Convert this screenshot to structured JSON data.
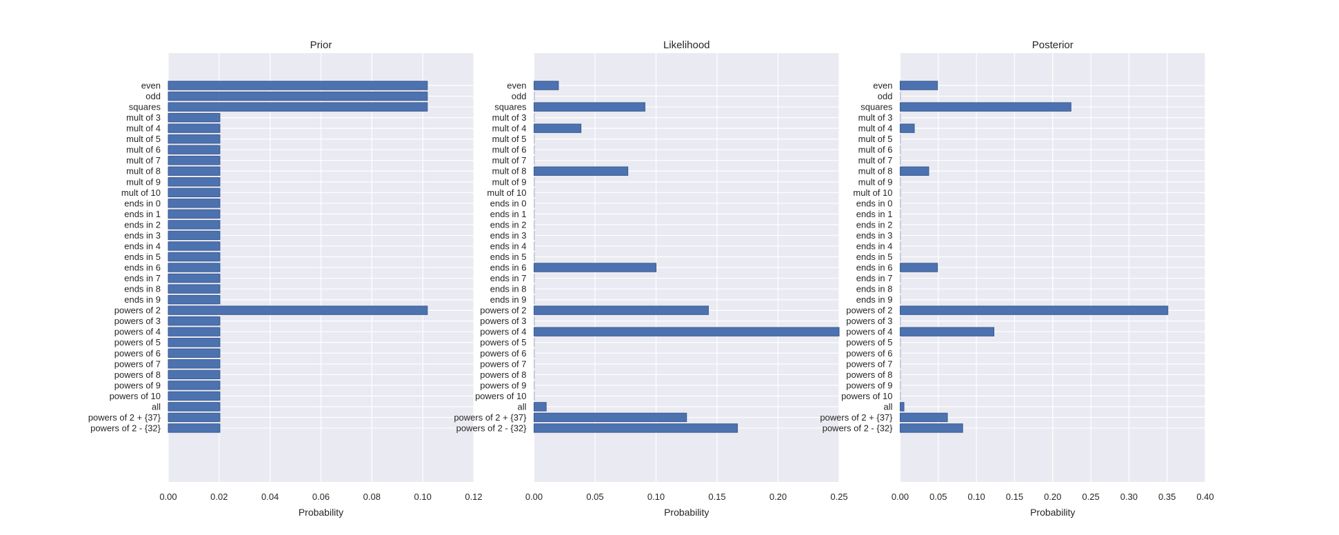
{
  "colors": {
    "bar": "#4C72B0",
    "bar_edge": "#3b5a8f",
    "plot_bg": "#EAEAF2",
    "grid": "#ffffff",
    "text": "#262626"
  },
  "chart_data": [
    {
      "type": "bar",
      "orientation": "horizontal",
      "title": "Prior",
      "xlabel": "Probability",
      "ylabel": "",
      "xlim": [
        0,
        0.12
      ],
      "xticks": [
        "0.00",
        "0.02",
        "0.04",
        "0.06",
        "0.08",
        "0.10",
        "0.12"
      ],
      "grid": true,
      "categories": [
        "even",
        "odd",
        "squares",
        "mult of 3",
        "mult of 4",
        "mult of 5",
        "mult of 6",
        "mult of 7",
        "mult of 8",
        "mult of 9",
        "mult of 10",
        "ends in 0",
        "ends in 1",
        "ends in 2",
        "ends in 3",
        "ends in 4",
        "ends in 5",
        "ends in 6",
        "ends in 7",
        "ends in 8",
        "ends in 9",
        "powers of 2",
        "powers of 3",
        "powers of 4",
        "powers of 5",
        "powers of 6",
        "powers of 7",
        "powers of 8",
        "powers of 9",
        "powers of 10",
        "all",
        "powers of 2 + {37}",
        "powers of 2 - {32}"
      ],
      "values": [
        0.1018,
        0.1018,
        0.1018,
        0.0203,
        0.0203,
        0.0203,
        0.0203,
        0.0203,
        0.0203,
        0.0203,
        0.0203,
        0.0203,
        0.0203,
        0.0203,
        0.0203,
        0.0203,
        0.0203,
        0.0203,
        0.0203,
        0.0203,
        0.0203,
        0.1018,
        0.0203,
        0.0203,
        0.0203,
        0.0203,
        0.0203,
        0.0203,
        0.0203,
        0.0203,
        0.0203,
        0.0203,
        0.0203
      ]
    },
    {
      "type": "bar",
      "orientation": "horizontal",
      "title": "Likelihood",
      "xlabel": "Probability",
      "ylabel": "",
      "xlim": [
        0,
        0.25
      ],
      "xticks": [
        "0.00",
        "0.05",
        "0.10",
        "0.15",
        "0.20",
        "0.25"
      ],
      "grid": true,
      "categories": [
        "even",
        "odd",
        "squares",
        "mult of 3",
        "mult of 4",
        "mult of 5",
        "mult of 6",
        "mult of 7",
        "mult of 8",
        "mult of 9",
        "mult of 10",
        "ends in 0",
        "ends in 1",
        "ends in 2",
        "ends in 3",
        "ends in 4",
        "ends in 5",
        "ends in 6",
        "ends in 7",
        "ends in 8",
        "ends in 9",
        "powers of 2",
        "powers of 3",
        "powers of 4",
        "powers of 5",
        "powers of 6",
        "powers of 7",
        "powers of 8",
        "powers of 9",
        "powers of 10",
        "all",
        "powers of 2 + {37}",
        "powers of 2 - {32}"
      ],
      "values": [
        0.02,
        0,
        0.0909,
        0,
        0.0385,
        0,
        0,
        0,
        0.0769,
        0,
        0,
        0,
        0,
        0,
        0,
        0,
        0,
        0.1,
        0,
        0,
        0,
        0.1429,
        0,
        0.25,
        0,
        0,
        0,
        0,
        0,
        0,
        0.01,
        0.125,
        0.1667
      ]
    },
    {
      "type": "bar",
      "orientation": "horizontal",
      "title": "Posterior",
      "xlabel": "Probability",
      "ylabel": "",
      "xlim": [
        0,
        0.4
      ],
      "xticks": [
        "0.00",
        "0.05",
        "0.10",
        "0.15",
        "0.20",
        "0.25",
        "0.30",
        "0.35",
        "0.40"
      ],
      "grid": true,
      "categories": [
        "even",
        "odd",
        "squares",
        "mult of 3",
        "mult of 4",
        "mult of 5",
        "mult of 6",
        "mult of 7",
        "mult of 8",
        "mult of 9",
        "mult of 10",
        "ends in 0",
        "ends in 1",
        "ends in 2",
        "ends in 3",
        "ends in 4",
        "ends in 5",
        "ends in 6",
        "ends in 7",
        "ends in 8",
        "ends in 9",
        "powers of 2",
        "powers of 3",
        "powers of 4",
        "powers of 5",
        "powers of 6",
        "powers of 7",
        "powers of 8",
        "powers of 9",
        "powers of 10",
        "all",
        "powers of 2 + {37}",
        "powers of 2 - {32}"
      ],
      "values": [
        0.049,
        0,
        0.224,
        0,
        0.0186,
        0,
        0,
        0,
        0.0375,
        0,
        0,
        0,
        0,
        0,
        0,
        0,
        0,
        0.049,
        0,
        0,
        0,
        0.351,
        0,
        0.123,
        0,
        0,
        0,
        0,
        0,
        0,
        0.005,
        0.062,
        0.082
      ]
    }
  ]
}
